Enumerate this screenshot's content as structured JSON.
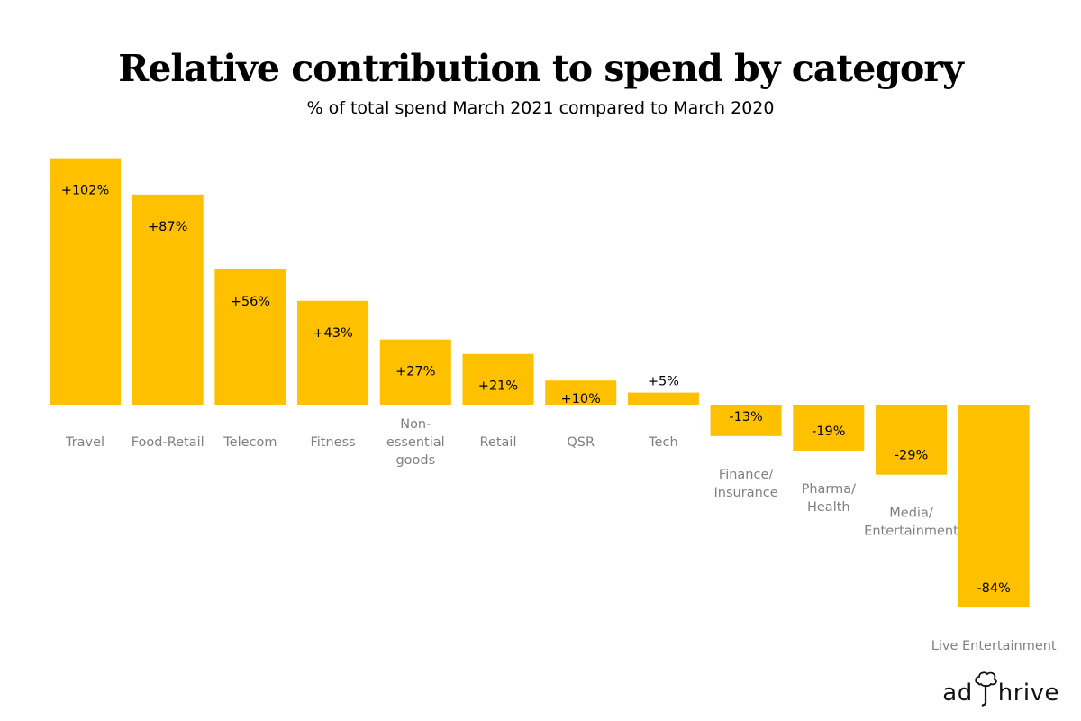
{
  "chart_data": {
    "type": "bar",
    "title": "Relative contribution to spend by category",
    "subtitle": "% of total spend March 2021 compared to March 2020",
    "xlabel": "",
    "ylabel": "",
    "ylim": [
      -84,
      102
    ],
    "grid": false,
    "color": "#FFC000",
    "categories": [
      [
        "Travel"
      ],
      [
        "Food-Retail"
      ],
      [
        "Telecom"
      ],
      [
        "Fitness"
      ],
      [
        "Non-",
        "essential",
        "goods"
      ],
      [
        "Retail"
      ],
      [
        "QSR"
      ],
      [
        "Tech"
      ],
      [
        "Finance/",
        "Insurance"
      ],
      [
        "Pharma/",
        "Health"
      ],
      [
        "Media/",
        "Entertainment"
      ],
      [
        "Live Entertainment"
      ]
    ],
    "values": [
      102,
      87,
      56,
      43,
      27,
      21,
      10,
      5,
      -13,
      -19,
      -29,
      -84
    ],
    "data_labels": [
      "+102%",
      "+87%",
      "+56%",
      "+43%",
      "+27%",
      "+21%",
      "+10%",
      "+5%",
      "-13%",
      "-19%",
      "-29%",
      "-84%"
    ]
  },
  "brand": {
    "logo_text_left": "ad",
    "logo_text_right": "hrive"
  }
}
